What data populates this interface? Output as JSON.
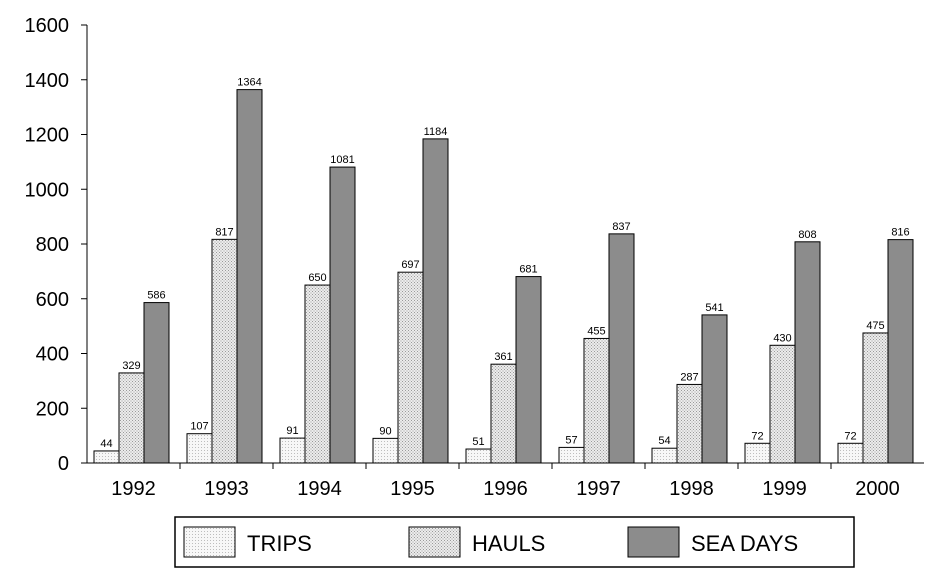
{
  "chart_data": {
    "type": "bar",
    "title": "",
    "xlabel": "",
    "ylabel": "",
    "ylim": [
      0,
      1600
    ],
    "yticks": [
      0,
      200,
      400,
      600,
      800,
      1000,
      1200,
      1400,
      1600
    ],
    "categories": [
      "1992",
      "1993",
      "1994",
      "1995",
      "1996",
      "1997",
      "1998",
      "1999",
      "2000"
    ],
    "series": [
      {
        "name": "TRIPS",
        "values": [
          44,
          107,
          91,
          90,
          51,
          57,
          54,
          72,
          72
        ],
        "color": "#f2f2f2",
        "pattern": "fine-dots"
      },
      {
        "name": "HAULS",
        "values": [
          329,
          817,
          650,
          697,
          361,
          455,
          287,
          430,
          475
        ],
        "color": "#dcdcdc",
        "pattern": "crosshatch-dots"
      },
      {
        "name": "SEA DAYS",
        "values": [
          586,
          1364,
          1081,
          1184,
          681,
          837,
          541,
          808,
          816
        ],
        "color": "#8c8c8c",
        "pattern": "solid"
      }
    ],
    "grid": false,
    "legend_position": "bottom"
  }
}
